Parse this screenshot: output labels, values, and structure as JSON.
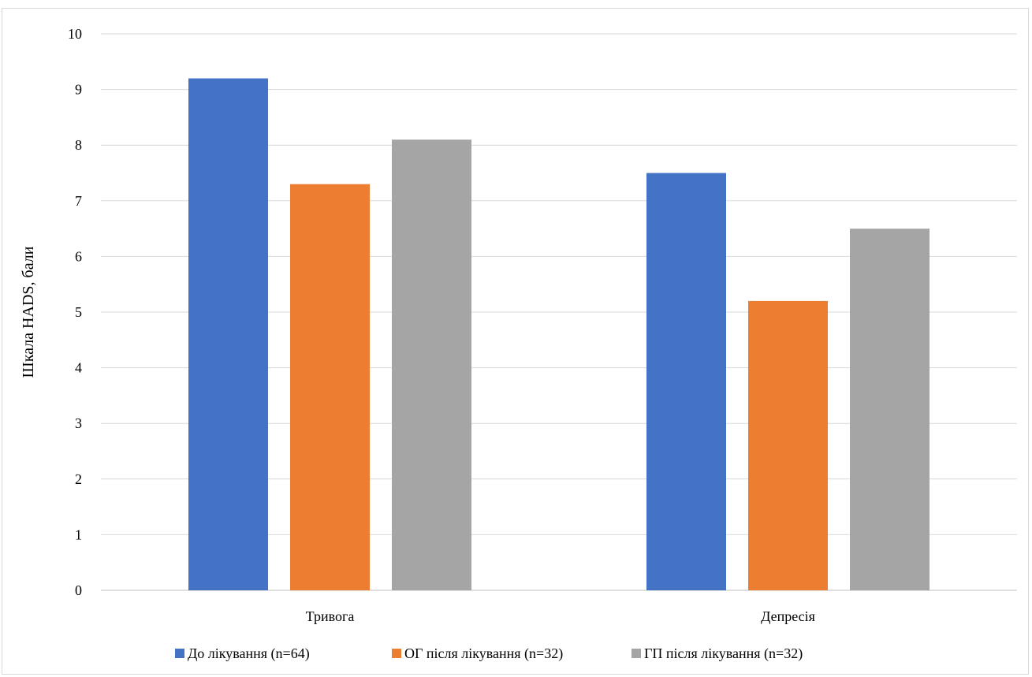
{
  "chart_data": {
    "type": "bar",
    "title": "",
    "xlabel": "",
    "ylabel": "Шкала HADS, бали",
    "ylim": [
      0,
      10
    ],
    "yticks": [
      0,
      1,
      2,
      3,
      4,
      5,
      6,
      7,
      8,
      9,
      10
    ],
    "grid": true,
    "legend_position": "bottom",
    "categories": [
      "Тривога",
      "Депресія"
    ],
    "series": [
      {
        "name": "До лікування (n=64)",
        "color": "#4472C4",
        "values": [
          9.2,
          7.5
        ]
      },
      {
        "name": "ОГ після лікування (n=32)",
        "color": "#ED7D31",
        "values": [
          7.3,
          5.2
        ]
      },
      {
        "name": "ГП після лікування (n=32)",
        "color": "#A5A5A5",
        "values": [
          8.1,
          6.5
        ]
      }
    ]
  }
}
